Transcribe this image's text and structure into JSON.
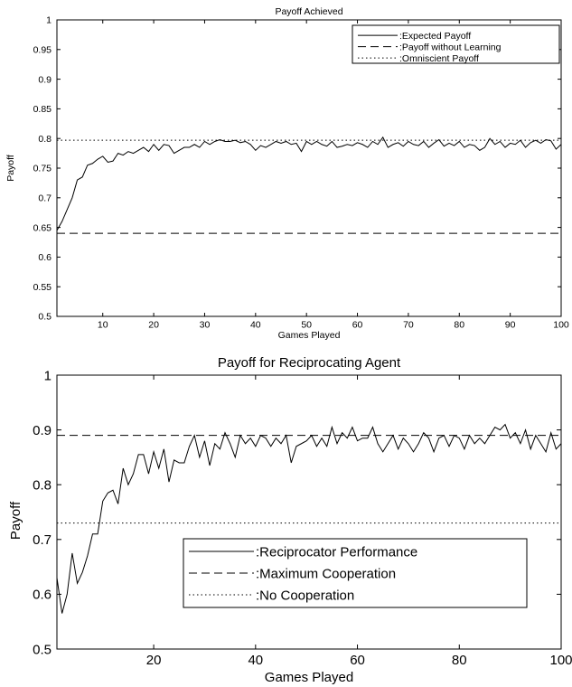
{
  "chart_data": [
    {
      "type": "line",
      "title": "Payoff Achieved",
      "xlabel": "Games Played",
      "ylabel": "Payoff",
      "xlim": [
        1,
        100
      ],
      "ylim": [
        0.5,
        1
      ],
      "xticks": [
        10,
        20,
        30,
        40,
        50,
        60,
        70,
        80,
        90,
        100
      ],
      "yticks": [
        0.5,
        0.55,
        0.6,
        0.65,
        0.7,
        0.75,
        0.8,
        0.85,
        0.9,
        0.95,
        1
      ],
      "ytick_labels": [
        "0.5",
        "0.55",
        "0.6",
        "0.65",
        "0.7",
        "0.75",
        "0.8",
        "0.85",
        "0.9",
        "0.95",
        "1"
      ],
      "legend_position": "top-right",
      "grid": false,
      "series": [
        {
          "name": ":Expected Payoff",
          "style": "solid",
          "x": [
            1,
            2,
            3,
            4,
            5,
            6,
            7,
            8,
            9,
            10,
            11,
            12,
            13,
            14,
            15,
            16,
            17,
            18,
            19,
            20,
            21,
            22,
            23,
            24,
            25,
            26,
            27,
            28,
            29,
            30,
            31,
            32,
            33,
            34,
            35,
            36,
            37,
            38,
            39,
            40,
            41,
            42,
            43,
            44,
            45,
            46,
            47,
            48,
            49,
            50,
            51,
            52,
            53,
            54,
            55,
            56,
            57,
            58,
            59,
            60,
            61,
            62,
            63,
            64,
            65,
            66,
            67,
            68,
            69,
            70,
            71,
            72,
            73,
            74,
            75,
            76,
            77,
            78,
            79,
            80,
            81,
            82,
            83,
            84,
            85,
            86,
            87,
            88,
            89,
            90,
            91,
            92,
            93,
            94,
            95,
            96,
            97,
            98,
            99,
            100
          ],
          "y": [
            0.645,
            0.66,
            0.68,
            0.7,
            0.73,
            0.735,
            0.755,
            0.758,
            0.765,
            0.77,
            0.76,
            0.762,
            0.775,
            0.772,
            0.778,
            0.775,
            0.78,
            0.785,
            0.778,
            0.79,
            0.78,
            0.79,
            0.788,
            0.775,
            0.78,
            0.785,
            0.785,
            0.79,
            0.785,
            0.795,
            0.79,
            0.795,
            0.798,
            0.795,
            0.795,
            0.797,
            0.793,
            0.795,
            0.79,
            0.78,
            0.788,
            0.785,
            0.79,
            0.795,
            0.792,
            0.795,
            0.79,
            0.792,
            0.778,
            0.795,
            0.79,
            0.795,
            0.79,
            0.787,
            0.795,
            0.785,
            0.787,
            0.79,
            0.788,
            0.793,
            0.79,
            0.785,
            0.795,
            0.79,
            0.802,
            0.785,
            0.79,
            0.793,
            0.787,
            0.795,
            0.79,
            0.788,
            0.795,
            0.785,
            0.792,
            0.798,
            0.787,
            0.792,
            0.788,
            0.795,
            0.785,
            0.79,
            0.788,
            0.78,
            0.785,
            0.8,
            0.79,
            0.795,
            0.785,
            0.792,
            0.79,
            0.797,
            0.785,
            0.793,
            0.797,
            0.792,
            0.798,
            0.796,
            0.782,
            0.79
          ]
        },
        {
          "name": ":Payoff without Learning",
          "style": "dashed",
          "x": [
            1,
            100
          ],
          "y": [
            0.64,
            0.64
          ]
        },
        {
          "name": ":Omniscient Payoff",
          "style": "dotted",
          "x": [
            1,
            100
          ],
          "y": [
            0.797,
            0.797
          ]
        }
      ]
    },
    {
      "type": "line",
      "title": "Payoff for Reciprocating Agent",
      "xlabel": "Games Played",
      "ylabel": "Payoff",
      "xlim": [
        1,
        100
      ],
      "ylim": [
        0.5,
        1
      ],
      "xticks": [
        20,
        40,
        60,
        80,
        100
      ],
      "yticks": [
        0.5,
        0.6,
        0.7,
        0.8,
        0.9,
        1
      ],
      "ytick_labels": [
        "0.5",
        "0.6",
        "0.7",
        "0.8",
        "0.9",
        "1"
      ],
      "legend_position": "bottom-right",
      "grid": false,
      "series": [
        {
          "name": ":Reciprocator Performance",
          "style": "solid",
          "x": [
            1,
            2,
            3,
            4,
            5,
            6,
            7,
            8,
            9,
            10,
            11,
            12,
            13,
            14,
            15,
            16,
            17,
            18,
            19,
            20,
            21,
            22,
            23,
            24,
            25,
            26,
            27,
            28,
            29,
            30,
            31,
            32,
            33,
            34,
            35,
            36,
            37,
            38,
            39,
            40,
            41,
            42,
            43,
            44,
            45,
            46,
            47,
            48,
            49,
            50,
            51,
            52,
            53,
            54,
            55,
            56,
            57,
            58,
            59,
            60,
            61,
            62,
            63,
            64,
            65,
            66,
            67,
            68,
            69,
            70,
            71,
            72,
            73,
            74,
            75,
            76,
            77,
            78,
            79,
            80,
            81,
            82,
            83,
            84,
            85,
            86,
            87,
            88,
            89,
            90,
            91,
            92,
            93,
            94,
            95,
            96,
            97,
            98,
            99,
            100
          ],
          "y": [
            0.63,
            0.565,
            0.6,
            0.675,
            0.62,
            0.64,
            0.67,
            0.71,
            0.71,
            0.77,
            0.785,
            0.79,
            0.765,
            0.83,
            0.8,
            0.82,
            0.855,
            0.855,
            0.82,
            0.86,
            0.83,
            0.865,
            0.805,
            0.845,
            0.84,
            0.84,
            0.87,
            0.89,
            0.85,
            0.88,
            0.835,
            0.875,
            0.865,
            0.895,
            0.875,
            0.85,
            0.89,
            0.875,
            0.885,
            0.87,
            0.89,
            0.885,
            0.87,
            0.885,
            0.875,
            0.89,
            0.84,
            0.87,
            0.875,
            0.88,
            0.89,
            0.87,
            0.885,
            0.87,
            0.905,
            0.875,
            0.895,
            0.885,
            0.905,
            0.88,
            0.885,
            0.885,
            0.905,
            0.875,
            0.86,
            0.875,
            0.89,
            0.865,
            0.885,
            0.875,
            0.86,
            0.875,
            0.895,
            0.885,
            0.86,
            0.885,
            0.89,
            0.87,
            0.89,
            0.885,
            0.865,
            0.89,
            0.875,
            0.885,
            0.875,
            0.89,
            0.905,
            0.9,
            0.91,
            0.885,
            0.895,
            0.875,
            0.9,
            0.865,
            0.89,
            0.875,
            0.86,
            0.895,
            0.865,
            0.875
          ]
        },
        {
          "name": ":Maximum Cooperation",
          "style": "dashed",
          "x": [
            1,
            100
          ],
          "y": [
            0.89,
            0.89
          ]
        },
        {
          "name": ":No Cooperation",
          "style": "dotted",
          "x": [
            1,
            100
          ],
          "y": [
            0.73,
            0.73
          ]
        }
      ]
    }
  ]
}
